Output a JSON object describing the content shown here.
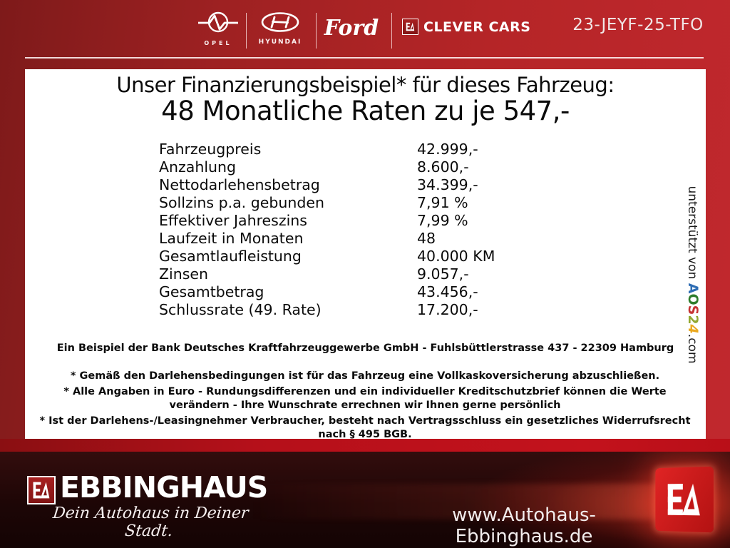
{
  "header": {
    "plate": "23-JEYF-25-TFO",
    "brands": {
      "opel": "OPEL",
      "hyundai": "HYUNDAI",
      "ford": "Ford",
      "clever_cars": "CLEVER CARS"
    }
  },
  "finance": {
    "title": "Unser Finanzierungsbeispiel* für dieses Fahrzeug:",
    "subtitle": "48 Monatliche Raten zu je 547,-",
    "rows": [
      {
        "label": "Fahrzeugpreis",
        "value": "42.999,-"
      },
      {
        "label": "Anzahlung",
        "value": "8.600,-"
      },
      {
        "label": "Nettodarlehensbetrag",
        "value": "34.399,-"
      },
      {
        "label": "Sollzins p.a. gebunden",
        "value": "7,91 %"
      },
      {
        "label": "Effektiver Jahreszins",
        "value": "7,99 %"
      },
      {
        "label": "Laufzeit in Monaten",
        "value": "48"
      },
      {
        "label": "Gesamtlaufleistung",
        "value": "40.000 KM"
      },
      {
        "label": "Zinsen",
        "value": "9.057,-"
      },
      {
        "label": "Gesamtbetrag",
        "value": "43.456,-"
      },
      {
        "label": "Schlussrate (49. Rate)",
        "value": "17.200,-"
      }
    ],
    "bank_line": "Ein Beispiel der Bank Deutsches Kraftfahrzeuggewerbe GmbH - Fuhlsbüttlerstrasse 437 - 22309 Hamburg",
    "notes": [
      "* Gemäß den Darlehensbedingungen ist für das Fahrzeug eine Vollkaskoversicherung abzuschließen.",
      "* Alle Angaben in Euro - Rundungsdifferenzen und ein individueller Kreditschutzbrief können die Werte verändern - Ihre Wunschrate errechnen wir Ihnen gerne persönlich",
      "* Ist der Darlehens-/Leasingnehmer Verbraucher, besteht nach Vertragsschluss ein gesetzliches Widerrufsrecht nach § 495 BGB."
    ]
  },
  "sidebar": {
    "supported_by": "unterstützt von ",
    "aos_letters": [
      {
        "char": "A",
        "color": "#2e6db4"
      },
      {
        "char": "O",
        "color": "#2f7d2b"
      },
      {
        "char": "S",
        "color": "#c63434"
      },
      {
        "char": "2",
        "color": "#93a832"
      },
      {
        "char": "4",
        "color": "#eaa81f"
      }
    ],
    "aos_suffix": ".com"
  },
  "footer": {
    "brand": "EBBINGHAUS",
    "tagline": "Dein Autohaus in Deiner Stadt.",
    "url": "www.Autohaus-Ebbinghaus.de"
  },
  "colors": {
    "background_red": "#b52527",
    "band_red": "#c3121c",
    "panel": "#ffffff",
    "footer_dark": "#1d0606",
    "logo_red": "#d92121"
  }
}
